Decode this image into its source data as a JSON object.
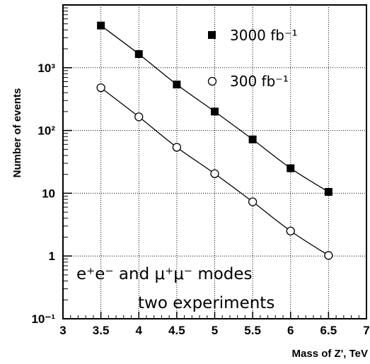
{
  "chart_data": {
    "type": "scatter",
    "xlabel": "Mass of Z', TeV",
    "ylabel": "Number of events",
    "xlim": [
      3,
      7
    ],
    "ylim": [
      0.1,
      10000
    ],
    "yscale": "log",
    "grid": true,
    "legend_position": "top-right",
    "x_tick_labels": [
      "3",
      "3.5",
      "4",
      "4.5",
      "5",
      "5.5",
      "6",
      "6.5",
      "7"
    ],
    "y_tick_labels": [
      "10⁻¹",
      "1",
      "10",
      "10²",
      "10³"
    ],
    "series": [
      {
        "name": "3000 fb⁻¹",
        "marker": "filled-square",
        "x": [
          3.5,
          4.0,
          4.5,
          5.0,
          5.5,
          6.0,
          6.5
        ],
        "y": [
          4700,
          1650,
          540,
          200,
          72,
          25,
          10.5
        ]
      },
      {
        "name": "300 fb⁻¹",
        "marker": "open-circle",
        "x": [
          3.5,
          4.0,
          4.5,
          5.0,
          5.5,
          6.0,
          6.5
        ],
        "y": [
          480,
          165,
          54,
          20.5,
          7.3,
          2.5,
          1.02
        ]
      }
    ],
    "annotations": [
      "e⁺e⁻ and μ⁺μ⁻ modes",
      "two experiments"
    ]
  }
}
